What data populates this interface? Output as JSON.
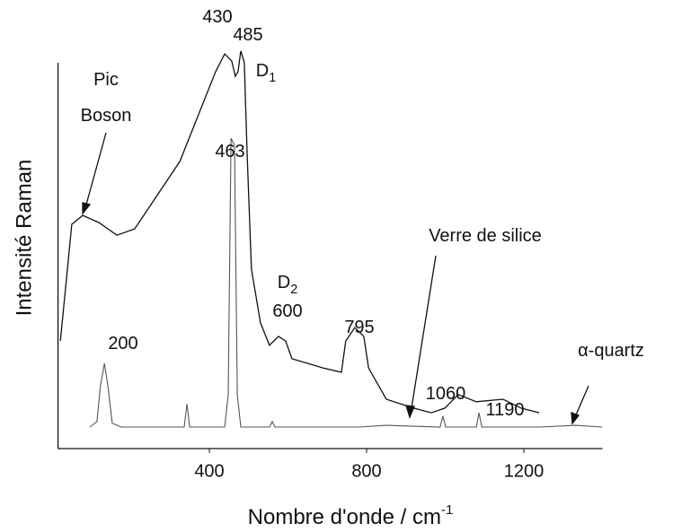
{
  "chart_data": {
    "type": "line",
    "x_label": {
      "text": "Nombre  d'onde  /  cm",
      "sup": "-1"
    },
    "y_label": "Intensité  Raman",
    "xlim": [
      15,
      1400
    ],
    "xticks": [
      400,
      800,
      1200
    ],
    "ylim": [
      0,
      100
    ],
    "series": [
      {
        "name": "Verre de silice",
        "color": "#111111",
        "x": [
          21,
          50,
          78,
          119,
          165,
          210,
          325,
          416,
          439,
          457,
          466,
          473,
          480,
          489,
          496,
          507,
          530,
          553,
          576,
          594,
          610,
          690,
          736,
          747,
          770,
          793,
          805,
          850,
          919,
          965,
          999,
          1033,
          1079,
          1147,
          1193,
          1239
        ],
        "values": [
          25.5,
          53.2,
          55.3,
          53.6,
          50.6,
          52.1,
          68.1,
          89.4,
          93.6,
          91.9,
          88.3,
          89.4,
          94.3,
          91.5,
          70.2,
          42.6,
          29.8,
          24.5,
          26.6,
          25.5,
          21.3,
          19.1,
          18.1,
          25.5,
          28.7,
          26.6,
          19.1,
          11.7,
          9.6,
          8.5,
          9.6,
          12.8,
          11.1,
          11.7,
          9.6,
          8.5
        ]
      },
      {
        "name": "α-quartz",
        "color": "#555555",
        "x": [
          96,
          114,
          123,
          133,
          142,
          153,
          176,
          336,
          343,
          350,
          439,
          448,
          455,
          464,
          471,
          480,
          553,
          560,
          567,
          782,
          850,
          987,
          994,
          1001,
          1079,
          1086,
          1093,
          1239,
          1330,
          1399
        ],
        "values": [
          5.1,
          6.4,
          14.9,
          20.2,
          14.9,
          6.0,
          5.1,
          5.1,
          10.6,
          5.1,
          5.1,
          12.8,
          73.6,
          71.9,
          12.8,
          5.1,
          5.1,
          6.4,
          5.1,
          5.1,
          5.5,
          5.1,
          7.7,
          5.1,
          5.1,
          8.5,
          5.1,
          5.1,
          5.5,
          5.1
        ]
      }
    ],
    "annotations": [
      {
        "text": "430"
      },
      {
        "text": "485"
      },
      {
        "text": "D",
        "sub": "1"
      },
      {
        "text": "Pic"
      },
      {
        "text": "Boson"
      },
      {
        "text": "463"
      },
      {
        "text": "D",
        "sub": "2"
      },
      {
        "text": "600"
      },
      {
        "text": "795"
      },
      {
        "text": "200"
      },
      {
        "text": "Verre de silice"
      },
      {
        "text": "1060"
      },
      {
        "text": "1190"
      },
      {
        "text": "α-quartz"
      }
    ]
  }
}
